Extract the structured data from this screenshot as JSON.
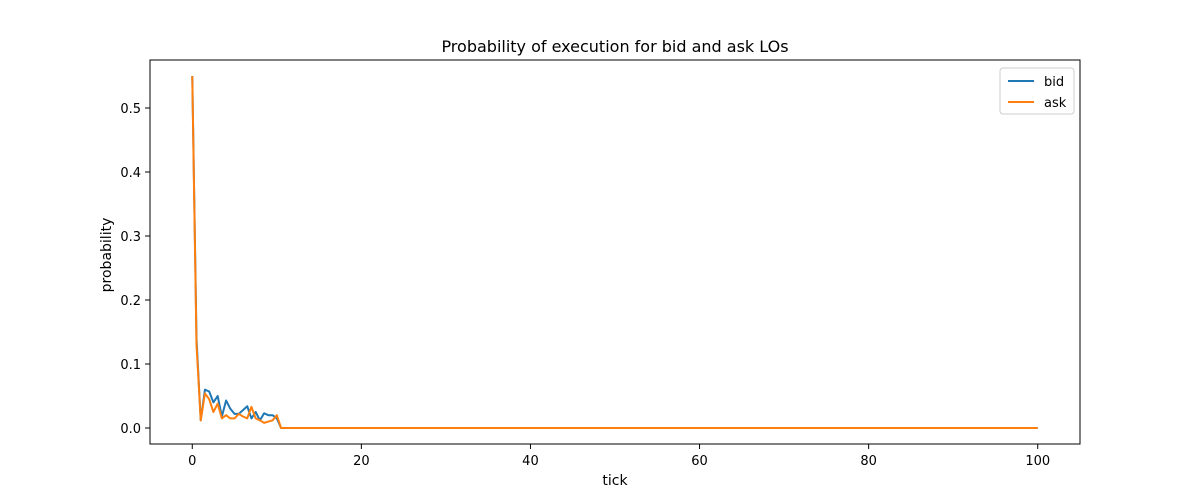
{
  "chart_data": {
    "type": "line",
    "title": "Probability of execution for bid and ask LOs",
    "xlabel": "tick",
    "ylabel": "probability",
    "xlim": [
      -5,
      105
    ],
    "ylim": [
      -0.025,
      0.575
    ],
    "xticks": [
      0,
      20,
      40,
      60,
      80,
      100
    ],
    "yticks": [
      0.0,
      0.1,
      0.2,
      0.3,
      0.4,
      0.5
    ],
    "xtick_labels": [
      "0",
      "20",
      "40",
      "60",
      "80",
      "100"
    ],
    "ytick_labels": [
      "0.0",
      "0.1",
      "0.2",
      "0.3",
      "0.4",
      "0.5"
    ],
    "grid": false,
    "legend": "top-right",
    "series": [
      {
        "name": "bid",
        "color": "#1f77b4",
        "points": [
          [
            0,
            0.55
          ],
          [
            0.5,
            0.14
          ],
          [
            1,
            0.012
          ],
          [
            1.5,
            0.06
          ],
          [
            2,
            0.057
          ],
          [
            2.5,
            0.04
          ],
          [
            3,
            0.05
          ],
          [
            3.5,
            0.018
          ],
          [
            4,
            0.043
          ],
          [
            4.5,
            0.03
          ],
          [
            5,
            0.022
          ],
          [
            5.5,
            0.022
          ],
          [
            6,
            0.028
          ],
          [
            6.5,
            0.034
          ],
          [
            7,
            0.015
          ],
          [
            7.5,
            0.025
          ],
          [
            8,
            0.012
          ],
          [
            8.5,
            0.023
          ],
          [
            9,
            0.02
          ],
          [
            9.5,
            0.02
          ],
          [
            10,
            0.015
          ],
          [
            10.5,
            0.0
          ],
          [
            20,
            0.0
          ],
          [
            40,
            0.0
          ],
          [
            60,
            0.0
          ],
          [
            80,
            0.0
          ],
          [
            100,
            0.0
          ]
        ]
      },
      {
        "name": "ask",
        "color": "#ff7f0e",
        "points": [
          [
            0,
            0.55
          ],
          [
            0.5,
            0.13
          ],
          [
            1,
            0.012
          ],
          [
            1.5,
            0.054
          ],
          [
            2,
            0.045
          ],
          [
            2.5,
            0.025
          ],
          [
            3,
            0.038
          ],
          [
            3.5,
            0.015
          ],
          [
            4,
            0.02
          ],
          [
            4.5,
            0.015
          ],
          [
            5,
            0.015
          ],
          [
            5.5,
            0.022
          ],
          [
            6,
            0.018
          ],
          [
            6.5,
            0.015
          ],
          [
            7,
            0.033
          ],
          [
            7.5,
            0.015
          ],
          [
            8,
            0.012
          ],
          [
            8.5,
            0.008
          ],
          [
            9,
            0.01
          ],
          [
            9.5,
            0.012
          ],
          [
            10,
            0.02
          ],
          [
            10.5,
            0.0
          ],
          [
            20,
            0.0
          ],
          [
            40,
            0.0
          ],
          [
            60,
            0.0
          ],
          [
            80,
            0.0
          ],
          [
            100,
            0.0
          ]
        ]
      }
    ]
  }
}
